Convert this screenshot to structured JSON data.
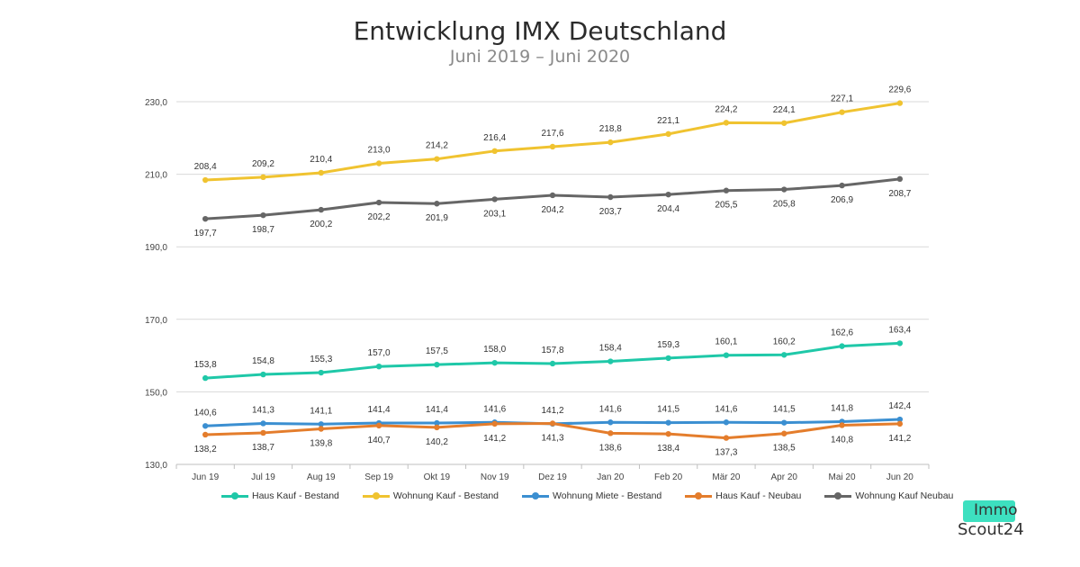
{
  "title": "Entwicklung IMX Deutschland",
  "subtitle": "Juni 2019 – Juni 2020",
  "logo": {
    "line1": "Immo",
    "line2": "Scout24",
    "accent": "#3de0c0"
  },
  "chart_data": {
    "type": "line",
    "categories": [
      "Jun 19",
      "Jul 19",
      "Aug 19",
      "Sep 19",
      "Okt 19",
      "Nov 19",
      "Dez 19",
      "Jan 20",
      "Feb 20",
      "Mär 20",
      "Apr 20",
      "Mai 20",
      "Jun 20"
    ],
    "yticks": [
      "130,0",
      "150,0",
      "170,0",
      "190,0",
      "210,0",
      "230,0"
    ],
    "ylim": [
      130,
      235
    ],
    "grid": true,
    "legend_position": "bottom",
    "series": [
      {
        "name": "Haus Kauf - Bestand",
        "color": "#1fc8a8",
        "label_position": "above",
        "values": [
          153.8,
          154.8,
          155.3,
          157.0,
          157.5,
          158.0,
          157.8,
          158.4,
          159.3,
          160.1,
          160.2,
          162.6,
          163.4
        ],
        "labels": [
          "153,8",
          "154,8",
          "155,3",
          "157,0",
          "157,5",
          "158,0",
          "157,8",
          "158,4",
          "159,3",
          "160,1",
          "160,2",
          "162,6",
          "163,4"
        ]
      },
      {
        "name": "Wohnung Kauf - Bestand",
        "color": "#f0c330",
        "label_position": "above",
        "values": [
          208.4,
          209.2,
          210.4,
          213.0,
          214.2,
          216.4,
          217.6,
          218.8,
          221.1,
          224.2,
          224.1,
          227.1,
          229.6
        ],
        "labels": [
          "208,4",
          "209,2",
          "210,4",
          "213,0",
          "214,2",
          "216,4",
          "217,6",
          "218,8",
          "221,1",
          "224,2",
          "224,1",
          "227,1",
          "229,6"
        ]
      },
      {
        "name": "Wohnung Miete - Bestand",
        "color": "#3b8fd1",
        "label_position": "above",
        "values": [
          140.6,
          141.3,
          141.1,
          141.4,
          141.4,
          141.6,
          141.2,
          141.6,
          141.5,
          141.6,
          141.5,
          141.8,
          142.4
        ],
        "labels": [
          "140,6",
          "141,3",
          "141,1",
          "141,4",
          "141,4",
          "141,6",
          "141,2",
          "141,6",
          "141,5",
          "141,6",
          "141,5",
          "141,8",
          "142,4"
        ]
      },
      {
        "name": "Haus Kauf - Neubau",
        "color": "#e47d2c",
        "label_position": "below",
        "values": [
          138.2,
          138.7,
          139.8,
          140.7,
          140.2,
          141.2,
          141.3,
          138.6,
          138.4,
          137.3,
          138.5,
          140.8,
          141.2
        ],
        "labels": [
          "138,2",
          "138,7",
          "139,8",
          "140,7",
          "140,2",
          "141,2",
          "141,3",
          "138,6",
          "138,4",
          "137,3",
          "138,5",
          "140,8",
          "141,2"
        ]
      },
      {
        "name": "Wohnung Kauf Neubau",
        "color": "#666666",
        "label_position": "below",
        "values": [
          197.7,
          198.7,
          200.2,
          202.2,
          201.9,
          203.1,
          204.2,
          203.7,
          204.4,
          205.5,
          205.8,
          206.9,
          208.7
        ],
        "labels": [
          "197,7",
          "198,7",
          "200,2",
          "202,2",
          "201,9",
          "203,1",
          "204,2",
          "203,7",
          "204,4",
          "205,5",
          "205,8",
          "206,9",
          "208,7"
        ]
      }
    ]
  }
}
